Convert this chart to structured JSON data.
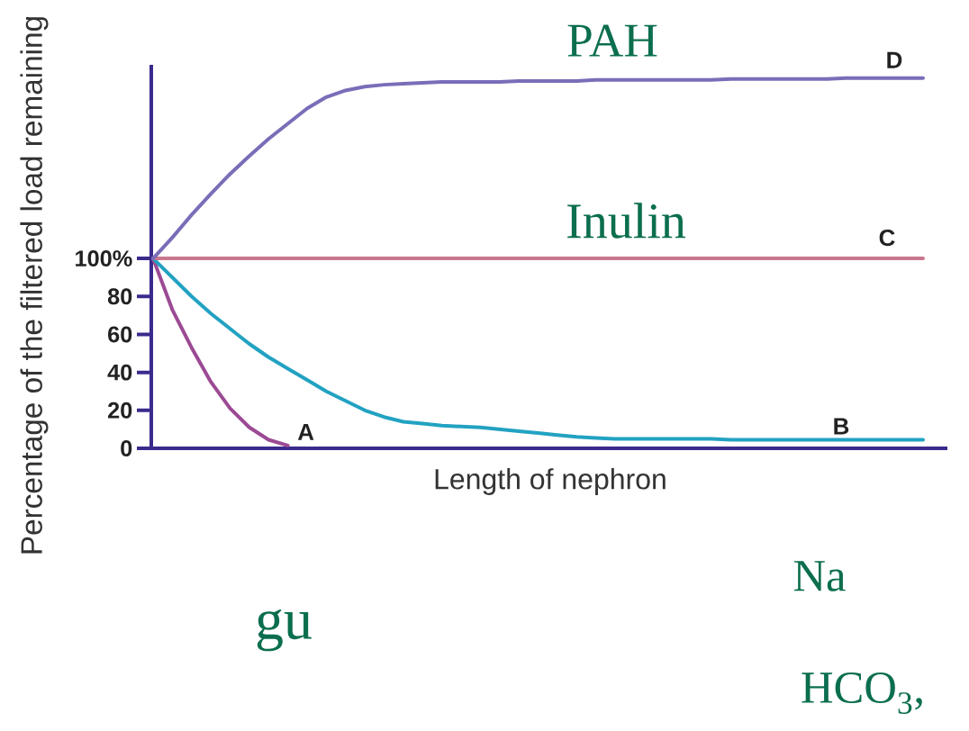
{
  "chart_data": {
    "type": "line",
    "xlabel": "Length of nephron",
    "ylabel": "Percentage of the filtered load remaining",
    "categories": [
      null,
      null,
      null,
      null,
      null,
      null,
      null,
      null,
      null,
      null,
      null,
      null,
      null,
      null,
      null,
      null,
      null,
      null,
      null,
      null,
      null,
      null,
      null,
      null,
      null,
      null,
      null,
      null,
      null,
      null,
      null,
      null,
      null,
      null,
      null,
      null,
      null,
      null,
      null,
      null,
      null
    ],
    "tick_labels": "y",
    "ylim": [
      0,
      202
    ],
    "yticks": [
      0,
      20,
      40,
      60,
      80,
      {
        "value": 100,
        "label": "100%"
      }
    ],
    "series": [
      {
        "name": "A",
        "color": "#9c4a94",
        "values": [
          100,
          73,
          53,
          35,
          21,
          11,
          4.5,
          1.5,
          null,
          null,
          null,
          null,
          null,
          null,
          null,
          null,
          null,
          null,
          null,
          null,
          null,
          null,
          null,
          null,
          null,
          null,
          null,
          null,
          null,
          null,
          null,
          null,
          null,
          null,
          null,
          null,
          null,
          null,
          null,
          null,
          null
        ]
      },
      {
        "name": "B",
        "color": "#22a2c2",
        "values": [
          100,
          90,
          80,
          71,
          63,
          55,
          48,
          42,
          36,
          30,
          25,
          20,
          16.5,
          14,
          13,
          12,
          11.5,
          11,
          10,
          9,
          8,
          7,
          6,
          5.5,
          5,
          5,
          5,
          5,
          5,
          5,
          4.5,
          4.5,
          4.5,
          4.5,
          4.5,
          4.5,
          4.5,
          4.5,
          4.5,
          4.5,
          4.5
        ]
      },
      {
        "name": "C",
        "color": "#c9788e",
        "values": [
          100,
          100,
          100,
          100,
          100,
          100,
          100,
          100,
          100,
          100,
          100,
          100,
          100,
          100,
          100,
          100,
          100,
          100,
          100,
          100,
          100,
          100,
          100,
          100,
          100,
          100,
          100,
          100,
          100,
          100,
          100,
          100,
          100,
          100,
          100,
          100,
          100,
          100,
          100,
          100,
          100
        ]
      },
      {
        "name": "D",
        "color": "#7a6db8",
        "values": [
          100,
          111,
          123,
          134,
          144.5,
          154,
          163,
          171,
          179,
          185,
          188.5,
          190.5,
          191.5,
          192,
          192.5,
          193,
          193,
          193,
          193,
          193.5,
          193.5,
          193.5,
          193.5,
          194,
          194,
          194,
          194,
          194,
          194,
          194,
          194.5,
          194.5,
          194.5,
          194.5,
          194.5,
          194.5,
          195,
          195,
          195,
          195,
          195
        ]
      }
    ],
    "annotations": [
      "PAH",
      "Inulin",
      "gu",
      "Na",
      "HCO$_{3}$,"
    ]
  }
}
